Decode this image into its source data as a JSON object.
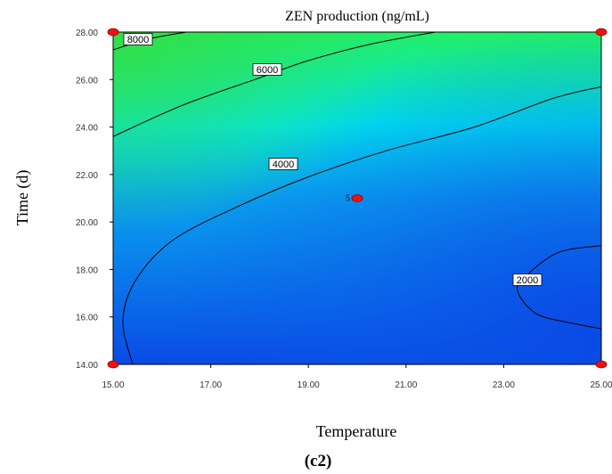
{
  "chart_data": {
    "type": "contour",
    "title": "ZEN production (ng/mL)",
    "xlabel": "Temperature",
    "ylabel": "Time (d)",
    "panel_label": "(c2)",
    "xlim": [
      15,
      25
    ],
    "ylim": [
      14,
      28
    ],
    "x_ticks": [
      "15.00",
      "17.00",
      "19.00",
      "21.00",
      "23.00",
      "25.00"
    ],
    "y_ticks": [
      "14.00",
      "16.00",
      "18.00",
      "20.00",
      "22.00",
      "24.00",
      "26.00",
      "28.00"
    ],
    "contours": [
      {
        "level": 2000,
        "label": "2000",
        "points": [
          [
            25.0,
            19.0
          ],
          [
            24.1,
            18.7
          ],
          [
            23.4,
            17.6
          ],
          [
            23.3,
            17.0
          ],
          [
            23.7,
            16.1
          ],
          [
            24.5,
            15.7
          ],
          [
            25.0,
            15.5
          ]
        ]
      },
      {
        "level": 4000,
        "label": "4000",
        "points": [
          [
            15.4,
            14.0
          ],
          [
            15.2,
            15.8
          ],
          [
            15.45,
            17.5
          ],
          [
            16.2,
            19.2
          ],
          [
            17.5,
            20.6
          ],
          [
            19.0,
            21.9
          ],
          [
            20.6,
            23.0
          ],
          [
            22.4,
            24.0
          ],
          [
            24.0,
            25.2
          ],
          [
            25.0,
            25.7
          ]
        ]
      },
      {
        "level": 6000,
        "label": "6000",
        "points": [
          [
            15.0,
            23.6
          ],
          [
            16.4,
            24.9
          ],
          [
            17.9,
            26.0
          ],
          [
            19.0,
            26.8
          ],
          [
            20.3,
            27.5
          ],
          [
            21.6,
            28.0
          ]
        ]
      },
      {
        "level": 8000,
        "label": "8000",
        "points": [
          [
            15.0,
            27.25
          ],
          [
            15.7,
            27.7
          ],
          [
            16.5,
            28.0
          ]
        ]
      }
    ],
    "design_points": [
      {
        "x": 15,
        "y": 14
      },
      {
        "x": 15,
        "y": 28
      },
      {
        "x": 25,
        "y": 14
      },
      {
        "x": 25,
        "y": 28
      },
      {
        "x": 20,
        "y": 21,
        "label": "5"
      }
    ],
    "colors": {
      "high": "#22ee66",
      "mid": "#00e6f0",
      "low": "#0a4ae6"
    },
    "grid": false
  }
}
